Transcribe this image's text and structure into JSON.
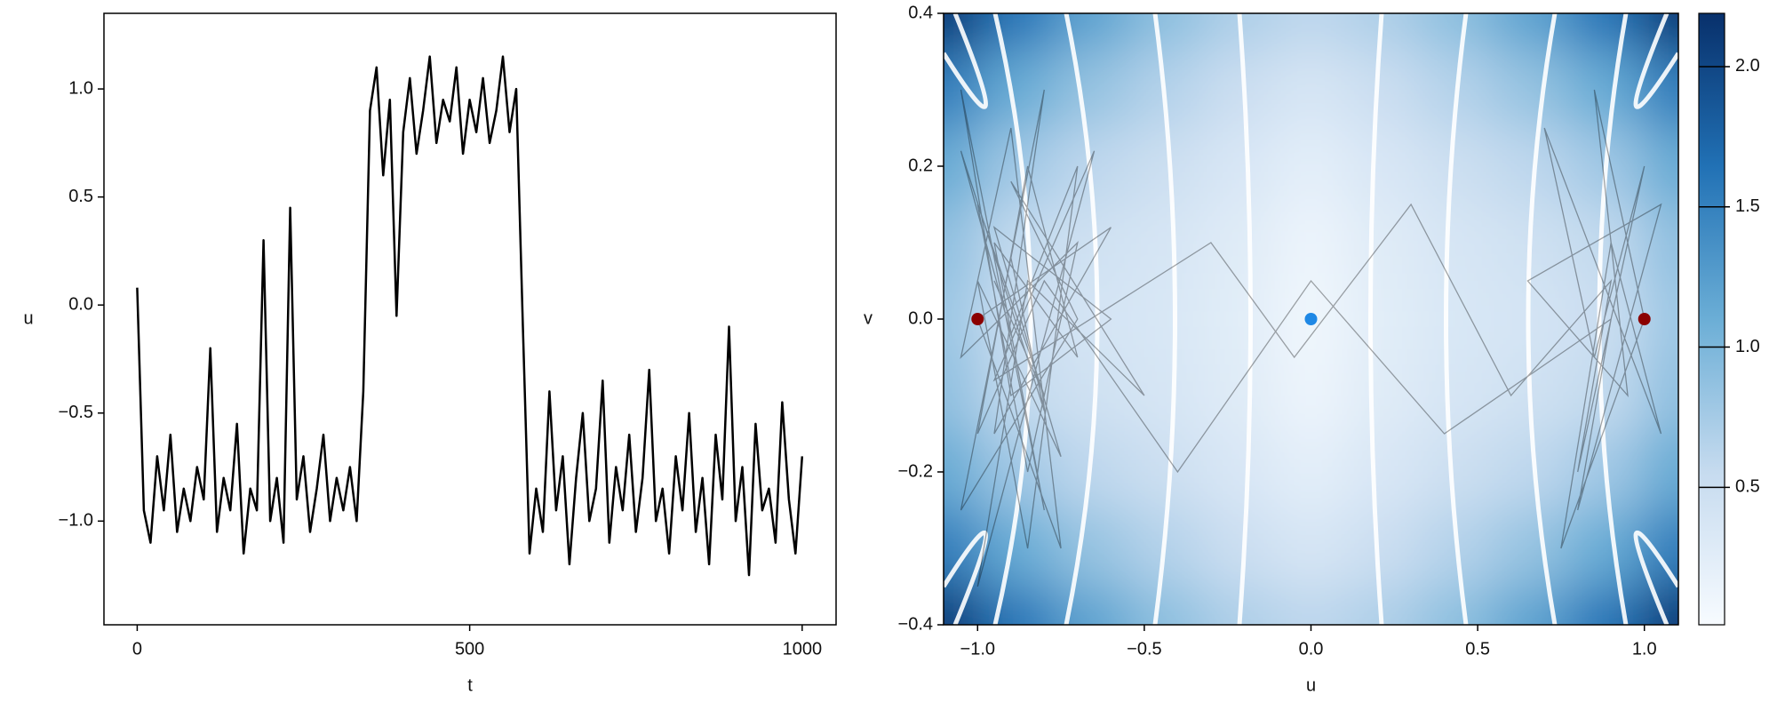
{
  "chart_data": [
    {
      "type": "line",
      "xlabel": "t",
      "ylabel": "u",
      "color": "#000000",
      "xlim": [
        -50,
        1051
      ],
      "ylim": [
        -1.48,
        1.35
      ],
      "xticks": [
        0,
        500,
        1000
      ],
      "yticks": [
        {
          "value": -1.0,
          "label": "−1.0"
        },
        {
          "value": -0.5,
          "label": "−0.5"
        },
        {
          "value": 0.0,
          "label": "0.0"
        },
        0.5,
        {
          "value": 1.0,
          "label": "1.0"
        }
      ],
      "x": [
        0,
        10,
        20,
        30,
        40,
        50,
        60,
        70,
        80,
        90,
        100,
        110,
        120,
        130,
        140,
        150,
        160,
        170,
        180,
        190,
        200,
        210,
        220,
        230,
        240,
        250,
        260,
        270,
        280,
        290,
        300,
        310,
        320,
        330,
        340,
        350,
        360,
        370,
        380,
        390,
        400,
        410,
        420,
        430,
        440,
        450,
        460,
        470,
        480,
        490,
        500,
        510,
        520,
        530,
        540,
        550,
        560,
        570,
        580,
        590,
        600,
        610,
        620,
        630,
        640,
        650,
        660,
        670,
        680,
        690,
        700,
        710,
        720,
        730,
        740,
        750,
        760,
        770,
        780,
        790,
        800,
        810,
        820,
        830,
        840,
        850,
        860,
        870,
        880,
        890,
        900,
        910,
        920,
        930,
        940,
        950,
        960,
        970,
        980,
        990,
        1000
      ],
      "values": [
        0.08,
        -0.95,
        -1.1,
        -0.7,
        -0.95,
        -0.6,
        -1.05,
        -0.85,
        -1.0,
        -0.75,
        -0.9,
        -0.2,
        -1.05,
        -0.8,
        -0.95,
        -0.55,
        -1.15,
        -0.85,
        -0.95,
        0.3,
        -1.0,
        -0.8,
        -1.1,
        0.45,
        -0.9,
        -0.7,
        -1.05,
        -0.85,
        -0.6,
        -1.0,
        -0.8,
        -0.95,
        -0.75,
        -1.0,
        -0.4,
        0.9,
        1.1,
        0.6,
        0.95,
        -0.05,
        0.8,
        1.05,
        0.7,
        0.9,
        1.15,
        0.75,
        0.95,
        0.85,
        1.1,
        0.7,
        0.95,
        0.8,
        1.05,
        0.75,
        0.9,
        1.15,
        0.8,
        1.0,
        -0.1,
        -1.15,
        -0.85,
        -1.05,
        -0.4,
        -0.95,
        -0.7,
        -1.2,
        -0.8,
        -0.5,
        -1.0,
        -0.85,
        -0.35,
        -1.1,
        -0.75,
        -0.95,
        -0.6,
        -1.05,
        -0.8,
        -0.3,
        -1.0,
        -0.85,
        -1.15,
        -0.7,
        -0.95,
        -0.5,
        -1.05,
        -0.8,
        -1.2,
        -0.6,
        -0.9,
        -0.1,
        -1.0,
        -0.75,
        -1.25,
        -0.55,
        -0.95,
        -0.85,
        -1.1,
        -0.45,
        -0.9,
        -1.15,
        -0.7
      ]
    },
    {
      "type": "heatmap",
      "xlabel": "u",
      "ylabel": "v",
      "xlim": [
        -1.102,
        1.102
      ],
      "ylim": [
        -0.4,
        0.4
      ],
      "xticks": [
        {
          "value": -1.0,
          "label": "−1.0"
        },
        {
          "value": -0.5,
          "label": "−0.5"
        },
        {
          "value": 0.0,
          "label": "0.0"
        },
        0.5,
        {
          "value": 1.0,
          "label": "1.0"
        }
      ],
      "yticks": [
        {
          "value": -0.4,
          "label": "−0.4"
        },
        {
          "value": -0.2,
          "label": "−0.2"
        },
        {
          "value": 0.0,
          "label": "0.0"
        },
        0.2,
        0.4
      ],
      "x": [
        -1.1,
        -0.88,
        -0.66,
        -0.44,
        -0.22,
        0,
        0.22,
        0.44,
        0.66,
        0.88,
        1.1
      ],
      "y": [
        0.4,
        0.3,
        0.2,
        0.1,
        0,
        -0.1,
        -0.2,
        -0.3,
        -0.4
      ],
      "z": [
        [
          2.1,
          1.6,
          1.2,
          0.9,
          0.7,
          0.6,
          0.7,
          0.9,
          1.2,
          1.6,
          2.1
        ],
        [
          1.53,
          1.12,
          0.85,
          0.66,
          0.5,
          0.38,
          0.5,
          0.66,
          0.85,
          1.12,
          1.53
        ],
        [
          1.13,
          0.78,
          0.6,
          0.49,
          0.36,
          0.23,
          0.36,
          0.49,
          0.6,
          0.78,
          1.13
        ],
        [
          0.88,
          0.57,
          0.45,
          0.38,
          0.28,
          0.13,
          0.28,
          0.38,
          0.45,
          0.57,
          0.88
        ],
        [
          0.8,
          0.5,
          0.4,
          0.35,
          0.25,
          0.1,
          0.25,
          0.35,
          0.4,
          0.5,
          0.8
        ],
        [
          0.88,
          0.57,
          0.45,
          0.38,
          0.28,
          0.13,
          0.28,
          0.38,
          0.45,
          0.57,
          0.88
        ],
        [
          1.13,
          0.78,
          0.6,
          0.49,
          0.36,
          0.23,
          0.36,
          0.49,
          0.6,
          0.78,
          1.13
        ],
        [
          1.53,
          1.12,
          0.85,
          0.66,
          0.5,
          0.38,
          0.5,
          0.66,
          0.85,
          1.12,
          1.53
        ],
        [
          2.1,
          1.6,
          1.2,
          0.9,
          0.7,
          0.6,
          0.7,
          0.9,
          1.2,
          1.6,
          2.1
        ]
      ],
      "colorscale": [
        "#f7fbff",
        "#c6dbef",
        "#6baed6",
        "#2171b5",
        "#08306b"
      ],
      "clim": [
        0.01,
        2.19
      ],
      "cticks": [
        0.5,
        {
          "value": 1.0,
          "label": "1.0"
        },
        1.5,
        {
          "value": 2.0,
          "label": "2.0"
        }
      ],
      "trajectory": {
        "color": "#000000",
        "x": [
          -0.95,
          -0.8,
          -1.0,
          -0.85,
          -0.7,
          -1.05,
          -0.9,
          -0.75,
          -1.0,
          -0.6,
          -0.95,
          -0.8,
          -1.05,
          -0.7,
          -0.9,
          -0.5,
          -0.85,
          -1.0,
          -0.65,
          -0.95,
          -0.3,
          -0.05,
          0.3,
          0.6,
          0.9,
          0.8,
          1.0,
          0.85,
          0.7,
          1.05,
          0.9,
          0.75,
          1.0,
          0.85,
          0.95,
          0.65,
          1.05,
          0.8,
          0.9,
          0.4,
          0.0,
          -0.4,
          -0.8,
          -1.0,
          -0.85,
          -0.7,
          -0.95,
          -0.8,
          -1.05,
          -0.9,
          -0.6,
          -0.95,
          -0.75,
          -1.0,
          -0.85,
          -0.7,
          -0.9,
          -1.05,
          -0.8,
          -0.9
        ],
        "y": [
          0.05,
          -0.1,
          0.15,
          -0.2,
          0.1,
          -0.05,
          0.25,
          -0.3,
          0.0,
          0.12,
          -0.15,
          0.3,
          -0.25,
          0.0,
          0.18,
          -0.1,
          0.05,
          -0.35,
          0.22,
          -0.08,
          0.1,
          -0.05,
          0.15,
          -0.1,
          0.05,
          -0.2,
          0.2,
          -0.05,
          0.25,
          -0.15,
          0.1,
          -0.3,
          0.0,
          0.3,
          -0.1,
          0.05,
          0.15,
          -0.25,
          0.0,
          -0.15,
          0.05,
          -0.2,
          0.05,
          -0.15,
          0.2,
          -0.05,
          0.1,
          -0.25,
          0.3,
          -0.1,
          0.0,
          0.12,
          -0.18,
          0.05,
          -0.3,
          0.2,
          -0.02,
          0.22,
          -0.12,
          0.08
        ]
      },
      "fixed_points": {
        "x": [
          -1,
          0,
          1
        ],
        "y": [
          0,
          0,
          0
        ],
        "colors": [
          "#8b0000",
          "#1e88e5",
          "#8b0000"
        ]
      }
    }
  ]
}
